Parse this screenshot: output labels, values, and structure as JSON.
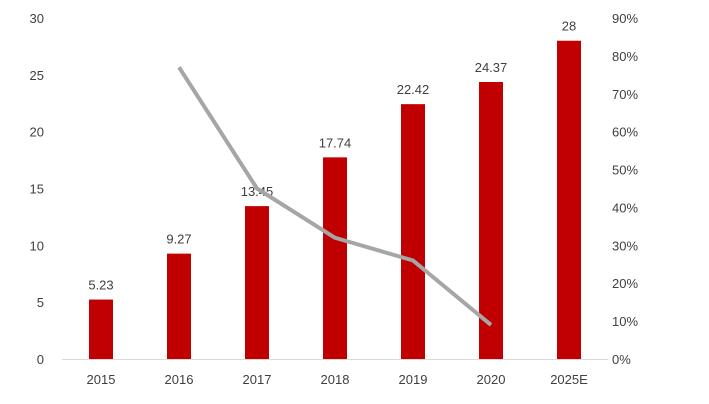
{
  "chart_data": {
    "type": "bar",
    "title": "",
    "xlabel": "",
    "ylabel": "",
    "categories": [
      "2015",
      "2016",
      "2017",
      "2018",
      "2019",
      "2020",
      "2025E"
    ],
    "series": [
      {
        "type": "bar",
        "axis": "left",
        "color": "#c00000",
        "values": [
          5.23,
          9.27,
          13.45,
          17.74,
          22.42,
          24.37,
          28
        ],
        "data_labels": [
          "5.23",
          "9.27",
          "13.45",
          "17.74",
          "22.42",
          "24.37",
          "28"
        ]
      },
      {
        "type": "line",
        "axis": "right",
        "color": "#a6a6a6",
        "values": [
          null,
          0.77,
          0.45,
          0.32,
          0.26,
          0.09,
          null
        ]
      }
    ],
    "y_left": {
      "min": 0,
      "max": 30,
      "ticks": [
        "0",
        "5",
        "10",
        "15",
        "20",
        "25",
        "30"
      ]
    },
    "y_right": {
      "min": 0,
      "max": 0.9,
      "ticks": [
        "0%",
        "10%",
        "20%",
        "30%",
        "40%",
        "50%",
        "60%",
        "70%",
        "80%",
        "90%"
      ]
    },
    "grid": false,
    "legend": "none"
  }
}
